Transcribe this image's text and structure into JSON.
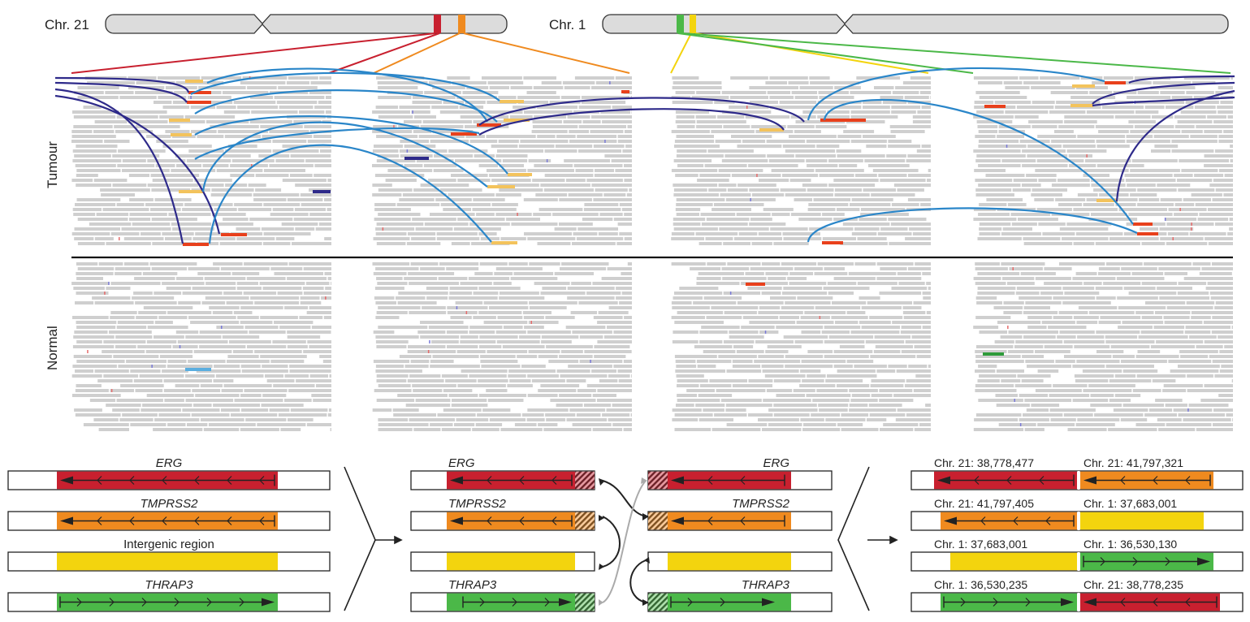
{
  "chromosomes": {
    "chr21": {
      "label": "Chr. 21"
    },
    "chr1": {
      "label": "Chr. 1"
    }
  },
  "row_labels": {
    "tumour": "Tumour",
    "normal": "Normal"
  },
  "colors": {
    "erg": "#c8202f",
    "tmprss2": "#ef8a1f",
    "intergenic": "#f3d40e",
    "thrap3": "#4bb848",
    "arc_light": "#2a86c9",
    "arc_dark": "#2e2a8a",
    "read": "#cfcfcf",
    "discordant": "#e8401c"
  },
  "genes_original": [
    {
      "name": "ERG",
      "color_key": "erg"
    },
    {
      "name": "TMPRSS2",
      "color_key": "tmprss2"
    },
    {
      "name": "Intergenic region",
      "color_key": "intergenic"
    },
    {
      "name": "THRAP3",
      "color_key": "thrap3"
    }
  ],
  "genes_break_left": [
    {
      "name": "ERG",
      "color_key": "erg"
    },
    {
      "name": "TMPRSS2",
      "color_key": "tmprss2"
    },
    {
      "name": "",
      "color_key": "intergenic"
    },
    {
      "name": "THRAP3",
      "color_key": "thrap3"
    }
  ],
  "genes_break_right": [
    {
      "name": "ERG",
      "color_key": "erg"
    },
    {
      "name": "TMPRSS2",
      "color_key": "tmprss2"
    },
    {
      "name": "",
      "color_key": "intergenic"
    },
    {
      "name": "THRAP3",
      "color_key": "thrap3"
    }
  ],
  "fusions": [
    {
      "left_label": "Chr. 21: 38,778,477",
      "left_color": "erg",
      "right_label": "Chr. 21: 41,797,321",
      "right_color": "tmprss2"
    },
    {
      "left_label": "Chr. 21: 41,797,405",
      "left_color": "tmprss2",
      "right_label": "Chr. 1: 37,683,001",
      "right_color": "intergenic"
    },
    {
      "left_label": "Chr. 1: 37,683,001",
      "left_color": "intergenic",
      "right_label": "Chr. 1: 36,530,130",
      "right_color": "thrap3"
    },
    {
      "left_label": "Chr. 1: 36,530,235",
      "left_color": "thrap3",
      "right_label": "Chr. 21: 38,778,235",
      "right_color": "erg"
    }
  ]
}
